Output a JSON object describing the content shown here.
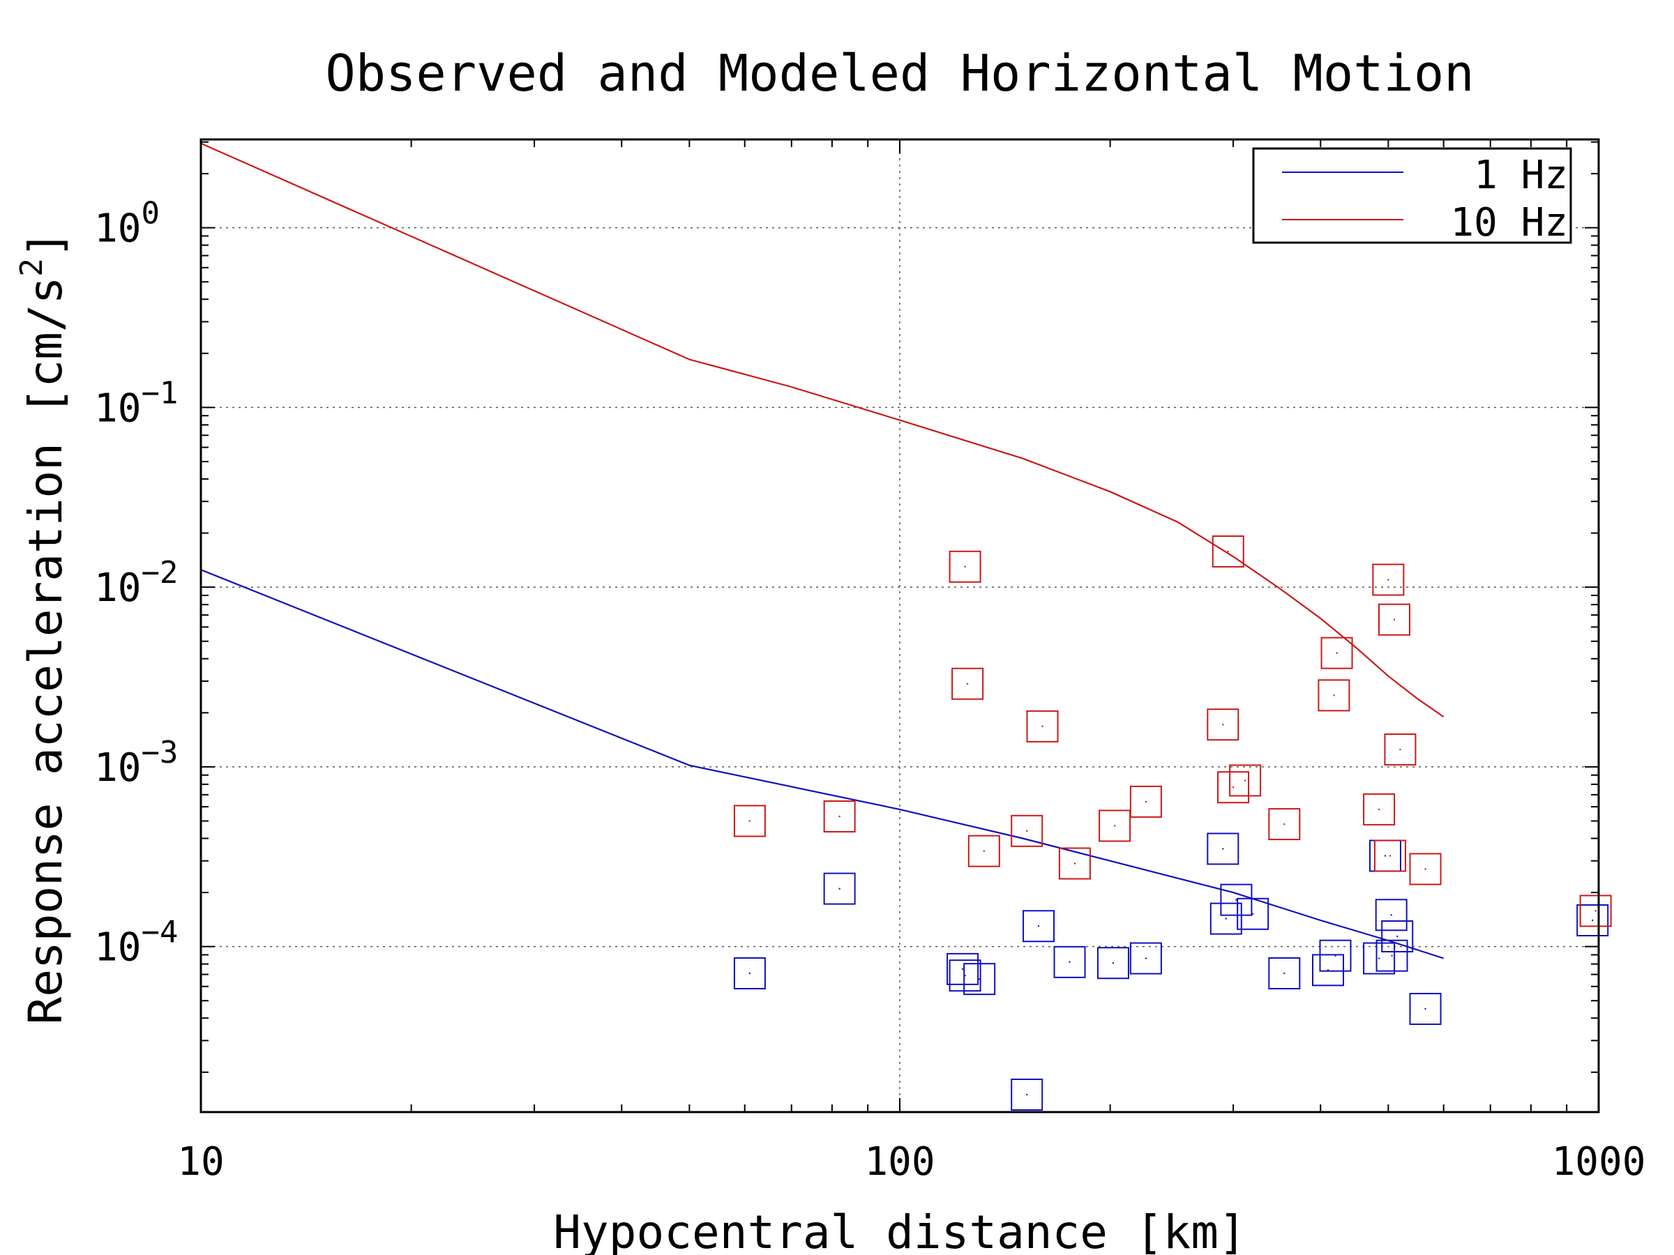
{
  "chart_data": {
    "type": "line",
    "title": "Observed and Modeled Horizontal Motion",
    "xlabel": "Hypocentral distance [km]",
    "ylabel": "Response acceleration [cm/s²]",
    "ylabel_main": "Response acceleration [cm/s",
    "ylabel_sup": "2",
    "ylabel_close": "]",
    "xscale": "log",
    "yscale": "log",
    "xlim": [
      10,
      1000
    ],
    "ylim": [
      1.2e-05,
      3.1
    ],
    "x_ticks": [
      {
        "value": 10,
        "label": "10"
      },
      {
        "value": 100,
        "label": "100"
      },
      {
        "value": 1000,
        "label": "1000"
      }
    ],
    "y_ticks": [
      {
        "value": 1,
        "base": "10",
        "exp": "0"
      },
      {
        "value": 0.1,
        "base": "10",
        "exp": "−1"
      },
      {
        "value": 0.01,
        "base": "10",
        "exp": "−2"
      },
      {
        "value": 0.001,
        "base": "10",
        "exp": "−3"
      },
      {
        "value": 0.0001,
        "base": "10",
        "exp": "−4"
      }
    ],
    "grid": true,
    "legend_position": "top-right",
    "series": [
      {
        "name": "1 Hz",
        "color": "#1010c0",
        "line": [
          [
            10,
            0.0125
          ],
          [
            50,
            0.00102
          ],
          [
            100,
            0.00058
          ],
          [
            150,
            0.0004
          ],
          [
            200,
            0.0003
          ],
          [
            300,
            0.0002
          ],
          [
            400,
            0.00014
          ],
          [
            500,
            0.000108
          ],
          [
            600,
            8.6e-05
          ]
        ],
        "observed": [
          [
            61,
            7.1e-05
          ],
          [
            82,
            0.00021
          ],
          [
            123,
            7.5e-05
          ],
          [
            124,
            6.9e-05
          ],
          [
            130,
            6.6e-05
          ],
          [
            152,
            1.5e-05
          ],
          [
            158,
            0.00013
          ],
          [
            175,
            8.2e-05
          ],
          [
            202,
            8.1e-05
          ],
          [
            225,
            8.6e-05
          ],
          [
            290,
            0.00035
          ],
          [
            293,
            0.000143
          ],
          [
            303,
            0.000182
          ],
          [
            320,
            0.000152
          ],
          [
            355,
            7.1e-05
          ],
          [
            410,
            7.4e-05
          ],
          [
            420,
            8.9e-05
          ],
          [
            485,
            8.6e-05
          ],
          [
            495,
            0.00032
          ],
          [
            505,
            0.00015
          ],
          [
            506,
            8.9e-05
          ],
          [
            515,
            0.000114
          ],
          [
            565,
            4.5e-05
          ],
          [
            980,
            0.00014
          ]
        ]
      },
      {
        "name": "10 Hz",
        "color": "#cc1818",
        "line": [
          [
            10,
            2.95
          ],
          [
            50,
            0.185
          ],
          [
            70,
            0.13
          ],
          [
            100,
            0.085
          ],
          [
            150,
            0.052
          ],
          [
            200,
            0.034
          ],
          [
            250,
            0.023
          ],
          [
            300,
            0.0148
          ],
          [
            350,
            0.0098
          ],
          [
            400,
            0.0067
          ],
          [
            450,
            0.0046
          ],
          [
            500,
            0.0032
          ],
          [
            550,
            0.0024
          ],
          [
            600,
            0.0019
          ]
        ],
        "observed": [
          [
            61,
            0.0005
          ],
          [
            82,
            0.00053
          ],
          [
            124,
            0.013
          ],
          [
            125,
            0.0029
          ],
          [
            132,
            0.00034
          ],
          [
            152,
            0.00044
          ],
          [
            160,
            0.00168
          ],
          [
            178,
            0.00029
          ],
          [
            203,
            0.00047
          ],
          [
            225,
            0.00064
          ],
          [
            290,
            0.00172
          ],
          [
            295,
            0.0158
          ],
          [
            300,
            0.00077
          ],
          [
            312,
            0.00084
          ],
          [
            355,
            0.00048
          ],
          [
            418,
            0.0025
          ],
          [
            422,
            0.0043
          ],
          [
            485,
            0.00058
          ],
          [
            500,
            0.011
          ],
          [
            503,
            0.00032
          ],
          [
            510,
            0.0066
          ],
          [
            520,
            0.00125
          ],
          [
            565,
            0.00027
          ],
          [
            990,
            0.000158
          ]
        ]
      }
    ]
  }
}
